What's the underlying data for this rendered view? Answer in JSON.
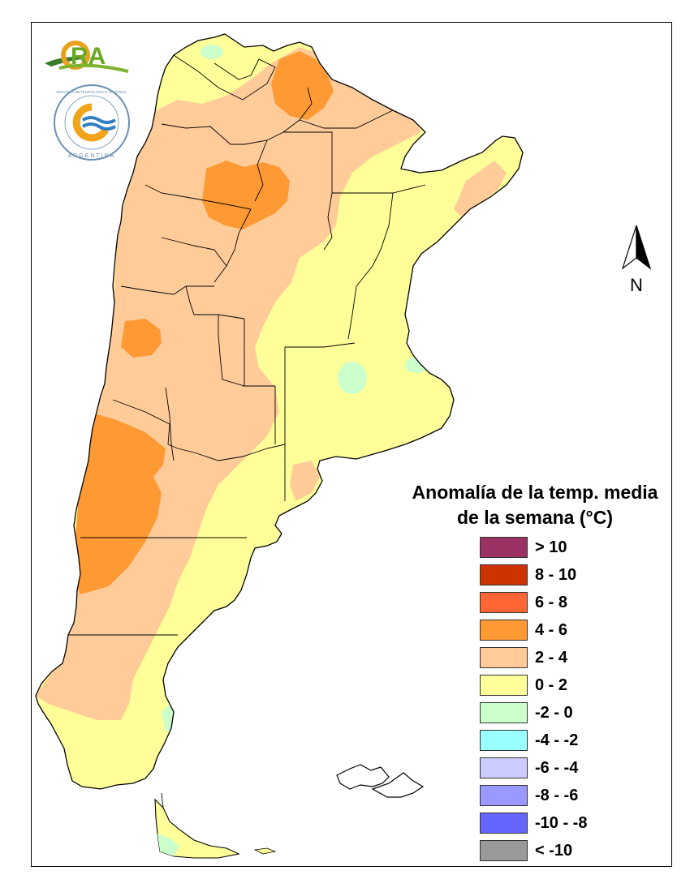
{
  "logos": {
    "ora_text": "ORA",
    "smn_text": "SERVICIO METEOROLÓGICO NACIONAL",
    "smn_country": "ARGENTINA"
  },
  "north_arrow": {
    "label": "N"
  },
  "legend": {
    "title_line1": "Anomalía de la temp. media",
    "title_line2": "de la semana (°C)",
    "items": [
      {
        "label": "> 10",
        "color": "#9b3264"
      },
      {
        "label": "8 - 10",
        "color": "#cc3300"
      },
      {
        "label": "6 - 8",
        "color": "#ff6633"
      },
      {
        "label": "4 - 6",
        "color": "#ff9933"
      },
      {
        "label": "2 - 4",
        "color": "#ffcc99"
      },
      {
        "label": "0 - 2",
        "color": "#ffff99"
      },
      {
        "label": "-2 - 0",
        "color": "#ccffcc"
      },
      {
        "label": "-4 - -2",
        "color": "#99ffff"
      },
      {
        "label": "-6 - -4",
        "color": "#ccccff"
      },
      {
        "label": "-8 - -6",
        "color": "#9999ff"
      },
      {
        "label": "-10 - -8",
        "color": "#6666ff"
      },
      {
        "label": "< -10",
        "color": "#999999"
      }
    ]
  }
}
